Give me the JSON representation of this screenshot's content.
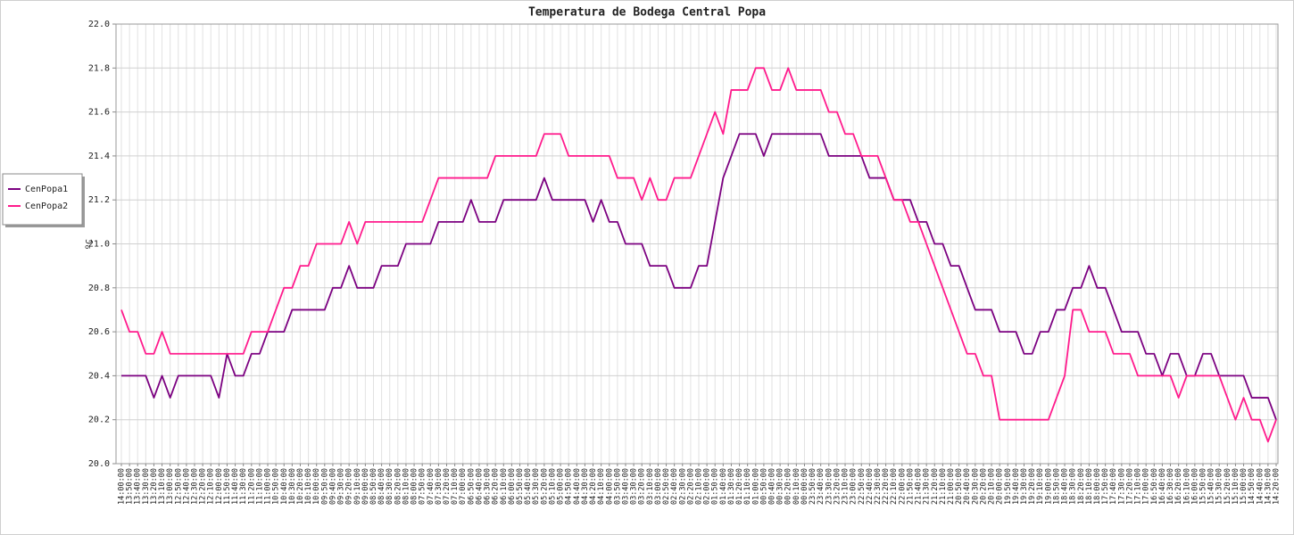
{
  "chart_data": {
    "type": "line",
    "title": "Temperatura de Bodega Central Popa",
    "y_label": "ºC",
    "categories": [
      "14:00:00",
      "13:50:00",
      "13:40:00",
      "13:30:00",
      "13:20:00",
      "13:10:00",
      "13:00:00",
      "12:50:00",
      "12:40:00",
      "12:30:00",
      "12:20:00",
      "12:10:00",
      "12:00:00",
      "11:50:00",
      "11:40:00",
      "11:30:00",
      "11:20:00",
      "11:10:00",
      "11:00:00",
      "10:50:00",
      "10:40:00",
      "10:30:00",
      "10:20:00",
      "10:10:00",
      "10:00:00",
      "09:50:00",
      "09:40:00",
      "09:30:00",
      "09:20:00",
      "09:10:00",
      "09:00:00",
      "08:50:00",
      "08:40:00",
      "08:30:00",
      "08:20:00",
      "08:10:00",
      "08:00:00",
      "07:50:00",
      "07:40:00",
      "07:30:00",
      "07:20:00",
      "07:10:00",
      "07:00:00",
      "06:50:00",
      "06:40:00",
      "06:30:00",
      "06:20:00",
      "06:10:00",
      "06:00:00",
      "05:50:00",
      "05:40:00",
      "05:30:00",
      "05:20:00",
      "05:10:00",
      "05:00:00",
      "04:50:00",
      "04:40:00",
      "04:30:00",
      "04:20:00",
      "04:10:00",
      "04:00:00",
      "03:50:00",
      "03:40:00",
      "03:30:00",
      "03:20:00",
      "03:10:00",
      "03:00:00",
      "02:50:00",
      "02:40:00",
      "02:30:00",
      "02:20:00",
      "02:10:00",
      "02:00:00",
      "01:50:00",
      "01:40:00",
      "01:30:00",
      "01:20:00",
      "01:10:00",
      "01:00:00",
      "00:50:00",
      "00:40:00",
      "00:30:00",
      "00:20:00",
      "00:10:00",
      "00:00:00",
      "23:50:00",
      "23:40:00",
      "23:30:00",
      "23:20:00",
      "23:10:00",
      "23:00:00",
      "22:50:00",
      "22:40:00",
      "22:30:00",
      "22:20:00",
      "22:10:00",
      "22:00:00",
      "21:50:00",
      "21:40:00",
      "21:30:00",
      "21:20:00",
      "21:10:00",
      "21:00:00",
      "20:50:00",
      "20:40:00",
      "20:30:00",
      "20:20:00",
      "20:10:00",
      "20:00:00",
      "19:50:00",
      "19:40:00",
      "19:30:00",
      "19:20:00",
      "19:10:00",
      "19:00:00",
      "18:50:00",
      "18:40:00",
      "18:30:00",
      "18:20:00",
      "18:10:00",
      "18:00:00",
      "17:50:00",
      "17:40:00",
      "17:30:00",
      "17:20:00",
      "17:10:00",
      "17:00:00",
      "16:50:00",
      "16:40:00",
      "16:30:00",
      "16:20:00",
      "16:10:00",
      "16:00:00",
      "15:50:00",
      "15:40:00",
      "15:30:00",
      "15:20:00",
      "15:10:00",
      "15:00:00",
      "14:50:00",
      "14:40:00",
      "14:30:00",
      "14:20:00"
    ],
    "series": [
      {
        "name": "CenPopa1",
        "color": "#7b0080",
        "values": [
          20.4,
          20.4,
          20.4,
          20.4,
          20.3,
          20.4,
          20.3,
          20.4,
          20.4,
          20.4,
          20.4,
          20.4,
          20.3,
          20.5,
          20.4,
          20.4,
          20.5,
          20.5,
          20.6,
          20.6,
          20.6,
          20.7,
          20.7,
          20.7,
          20.7,
          20.7,
          20.8,
          20.8,
          20.9,
          20.8,
          20.8,
          20.8,
          20.9,
          20.9,
          20.9,
          21.0,
          21.0,
          21.0,
          21.0,
          21.1,
          21.1,
          21.1,
          21.1,
          21.2,
          21.1,
          21.1,
          21.1,
          21.2,
          21.2,
          21.2,
          21.2,
          21.2,
          21.3,
          21.2,
          21.2,
          21.2,
          21.2,
          21.2,
          21.1,
          21.2,
          21.1,
          21.1,
          21.0,
          21.0,
          21.0,
          20.9,
          20.9,
          20.9,
          20.8,
          20.8,
          20.8,
          20.9,
          20.9,
          21.1,
          21.3,
          21.4,
          21.5,
          21.5,
          21.5,
          21.4,
          21.5,
          21.5,
          21.5,
          21.5,
          21.5,
          21.5,
          21.5,
          21.4,
          21.4,
          21.4,
          21.4,
          21.4,
          21.3,
          21.3,
          21.3,
          21.2,
          21.2,
          21.2,
          21.1,
          21.1,
          21.0,
          21.0,
          20.9,
          20.9,
          20.8,
          20.7,
          20.7,
          20.7,
          20.6,
          20.6,
          20.6,
          20.5,
          20.5,
          20.6,
          20.6,
          20.7,
          20.7,
          20.8,
          20.8,
          20.9,
          20.8,
          20.8,
          20.7,
          20.6,
          20.6,
          20.6,
          20.5,
          20.5,
          20.4,
          20.5,
          20.5,
          20.4,
          20.4,
          20.5,
          20.5,
          20.4,
          20.4,
          20.4,
          20.4,
          20.3,
          20.3,
          20.3,
          20.2
        ]
      },
      {
        "name": "CenPopa2",
        "color": "#ff1a8c",
        "values": [
          20.7,
          20.6,
          20.6,
          20.5,
          20.5,
          20.6,
          20.5,
          20.5,
          20.5,
          20.5,
          20.5,
          20.5,
          20.5,
          20.5,
          20.5,
          20.5,
          20.6,
          20.6,
          20.6,
          20.7,
          20.8,
          20.8,
          20.9,
          20.9,
          21.0,
          21.0,
          21.0,
          21.0,
          21.1,
          21.0,
          21.1,
          21.1,
          21.1,
          21.1,
          21.1,
          21.1,
          21.1,
          21.1,
          21.2,
          21.3,
          21.3,
          21.3,
          21.3,
          21.3,
          21.3,
          21.3,
          21.4,
          21.4,
          21.4,
          21.4,
          21.4,
          21.4,
          21.5,
          21.5,
          21.5,
          21.4,
          21.4,
          21.4,
          21.4,
          21.4,
          21.4,
          21.3,
          21.3,
          21.3,
          21.2,
          21.3,
          21.2,
          21.2,
          21.3,
          21.3,
          21.3,
          21.4,
          21.5,
          21.6,
          21.5,
          21.7,
          21.7,
          21.7,
          21.8,
          21.8,
          21.7,
          21.7,
          21.8,
          21.7,
          21.7,
          21.7,
          21.7,
          21.6,
          21.6,
          21.5,
          21.5,
          21.4,
          21.4,
          21.4,
          21.3,
          21.2,
          21.2,
          21.1,
          21.1,
          21.0,
          20.9,
          20.8,
          20.7,
          20.6,
          20.5,
          20.5,
          20.4,
          20.4,
          20.2,
          20.2,
          20.2,
          20.2,
          20.2,
          20.2,
          20.2,
          20.3,
          20.4,
          20.7,
          20.7,
          20.6,
          20.6,
          20.6,
          20.5,
          20.5,
          20.5,
          20.4,
          20.4,
          20.4,
          20.4,
          20.4,
          20.3,
          20.4,
          20.4,
          20.4,
          20.4,
          20.4,
          20.3,
          20.2,
          20.3,
          20.2,
          20.2,
          20.1,
          20.2
        ]
      }
    ],
    "ylim": [
      20.0,
      22.0
    ],
    "yticks": [
      {
        "value": 20.0,
        "label": "20.0"
      },
      20.2,
      20.4,
      20.6,
      20.8,
      {
        "value": 21.0,
        "label": "21.0"
      },
      21.2,
      21.4,
      21.6,
      21.8,
      {
        "value": 22.0,
        "label": "22.0"
      }
    ],
    "grid": true,
    "legend": "left"
  }
}
